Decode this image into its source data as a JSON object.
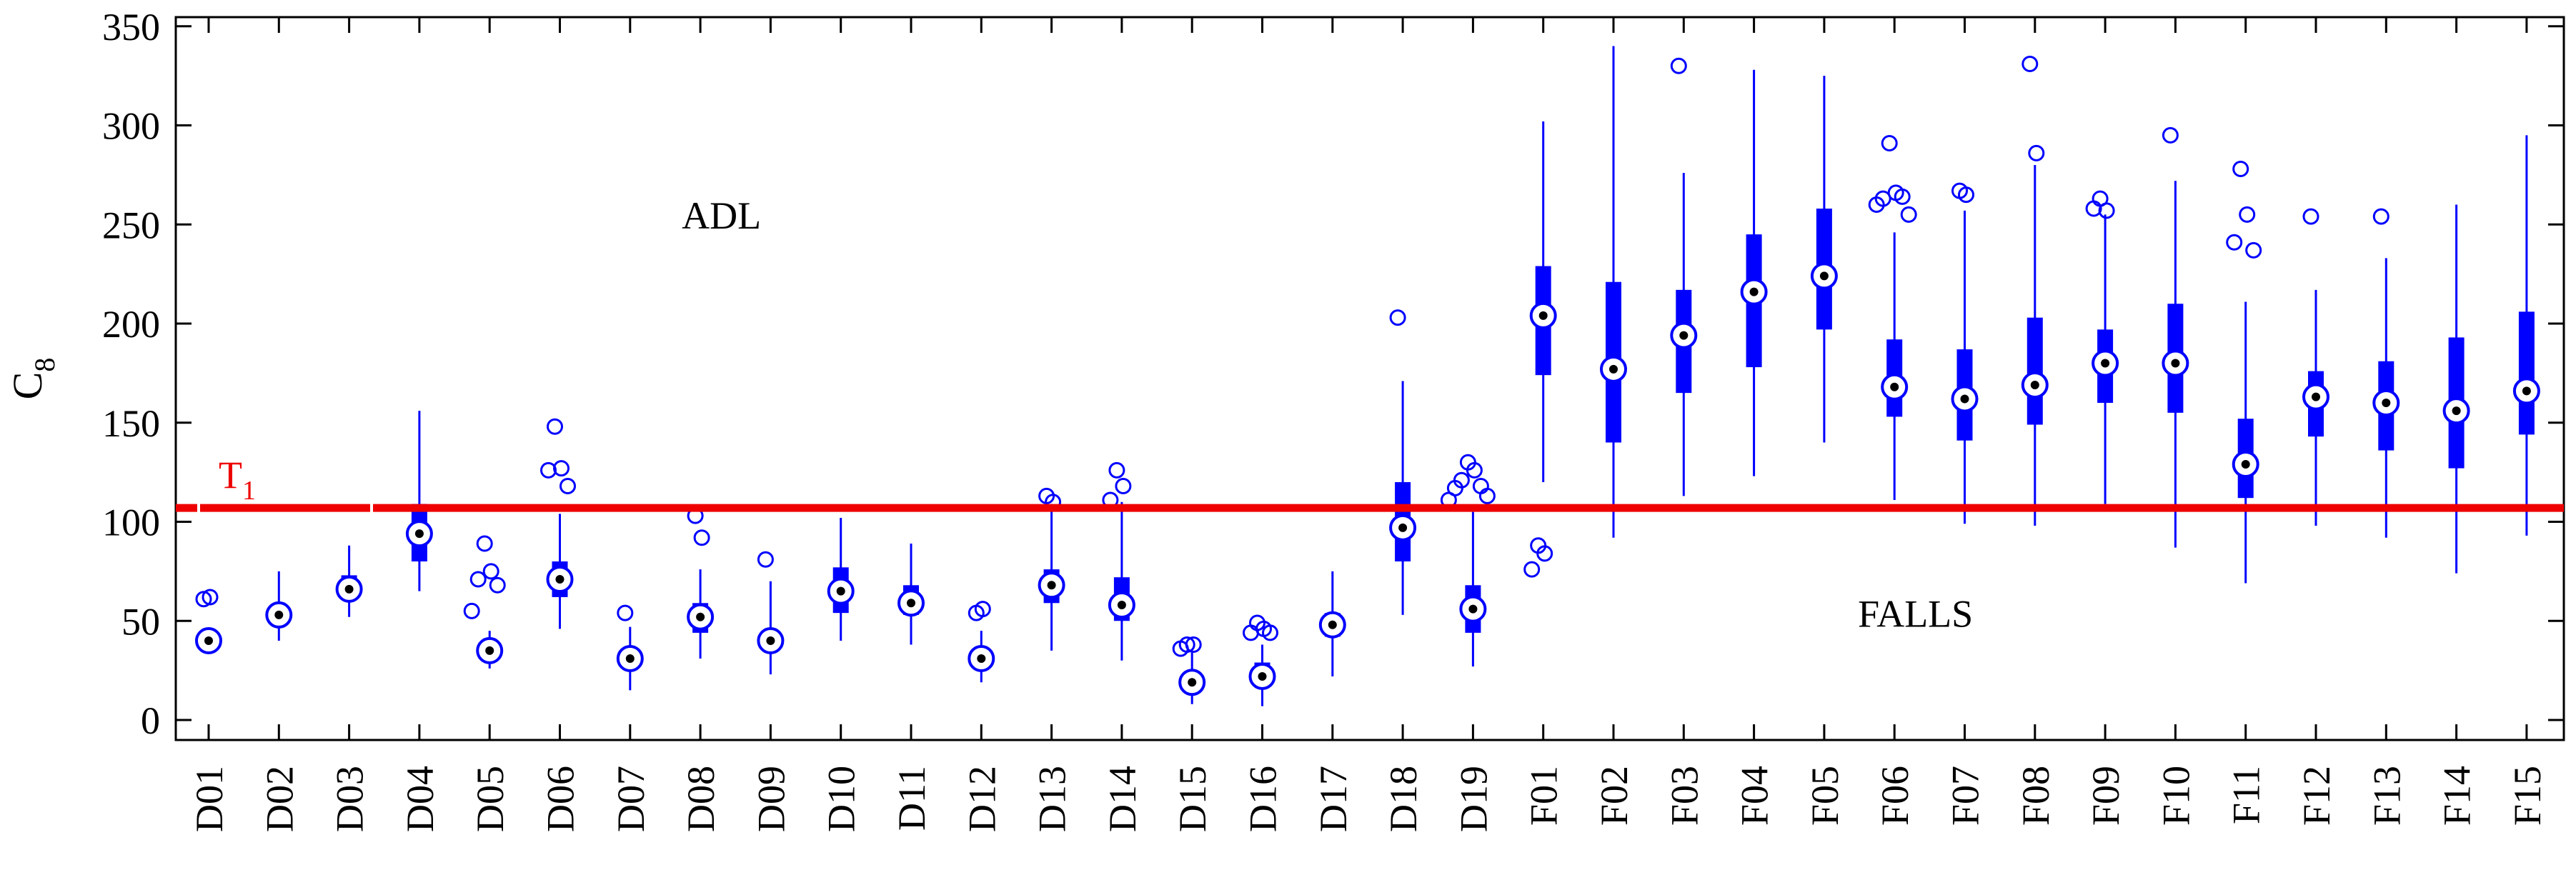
{
  "chart_data": {
    "type": "boxplot",
    "ylabel": "C",
    "ylabel_sub": "8",
    "ylim": [
      -8,
      355
    ],
    "yticks": [
      0,
      50,
      100,
      150,
      200,
      250,
      300,
      350
    ],
    "grid": false,
    "categories": [
      "D01",
      "D02",
      "D03",
      "D04",
      "D05",
      "D06",
      "D07",
      "D08",
      "D09",
      "D10",
      "D11",
      "D12",
      "D13",
      "D14",
      "D15",
      "D16",
      "D17",
      "D18",
      "D19",
      "F01",
      "F02",
      "F03",
      "F04",
      "F05",
      "F06",
      "F07",
      "F08",
      "F09",
      "F10",
      "F11",
      "F12",
      "F13",
      "F14",
      "F15"
    ],
    "boxes": [
      {
        "whislo": 35,
        "q1": 37,
        "med": 40,
        "q3": 43,
        "whishi": 46,
        "fliers": [
          61,
          62
        ]
      },
      {
        "whislo": 40,
        "q1": 49,
        "med": 53,
        "q3": 58,
        "whishi": 75,
        "fliers": []
      },
      {
        "whislo": 52,
        "q1": 61,
        "med": 66,
        "q3": 73,
        "whishi": 88,
        "fliers": []
      },
      {
        "whislo": 65,
        "q1": 80,
        "med": 94,
        "q3": 109,
        "whishi": 156,
        "fliers": []
      },
      {
        "whislo": 26,
        "q1": 31,
        "med": 35,
        "q3": 39,
        "whishi": 45,
        "fliers": [
          89,
          75,
          71,
          68,
          55
        ]
      },
      {
        "whislo": 46,
        "q1": 62,
        "med": 71,
        "q3": 80,
        "whishi": 104,
        "fliers": [
          148,
          127,
          126,
          118
        ]
      },
      {
        "whislo": 15,
        "q1": 27,
        "med": 31,
        "q3": 35,
        "whishi": 47,
        "fliers": [
          54
        ]
      },
      {
        "whislo": 31,
        "q1": 44,
        "med": 52,
        "q3": 59,
        "whishi": 76,
        "fliers": [
          103,
          92
        ]
      },
      {
        "whislo": 23,
        "q1": 35,
        "med": 40,
        "q3": 45,
        "whishi": 70,
        "fliers": [
          81
        ]
      },
      {
        "whislo": 40,
        "q1": 54,
        "med": 65,
        "q3": 77,
        "whishi": 102,
        "fliers": []
      },
      {
        "whislo": 38,
        "q1": 53,
        "med": 59,
        "q3": 68,
        "whishi": 89,
        "fliers": []
      },
      {
        "whislo": 19,
        "q1": 27,
        "med": 31,
        "q3": 36,
        "whishi": 45,
        "fliers": [
          54,
          56
        ]
      },
      {
        "whislo": 35,
        "q1": 59,
        "med": 68,
        "q3": 76,
        "whishi": 109,
        "fliers": [
          113,
          110
        ]
      },
      {
        "whislo": 30,
        "q1": 50,
        "med": 58,
        "q3": 72,
        "whishi": 110,
        "fliers": [
          126,
          118,
          111
        ]
      },
      {
        "whislo": 8,
        "q1": 14,
        "med": 19,
        "q3": 24,
        "whishi": 34,
        "fliers": [
          38,
          38,
          36
        ]
      },
      {
        "whislo": 7,
        "q1": 17,
        "med": 22,
        "q3": 29,
        "whishi": 38,
        "fliers": [
          49,
          46,
          44,
          44
        ]
      },
      {
        "whislo": 22,
        "q1": 42,
        "med": 48,
        "q3": 54,
        "whishi": 75,
        "fliers": []
      },
      {
        "whislo": 53,
        "q1": 80,
        "med": 97,
        "q3": 120,
        "whishi": 171,
        "fliers": [
          203
        ]
      },
      {
        "whislo": 27,
        "q1": 44,
        "med": 56,
        "q3": 68,
        "whishi": 105,
        "fliers": [
          130,
          126,
          121,
          118,
          117,
          113,
          111
        ]
      },
      {
        "whislo": 120,
        "q1": 174,
        "med": 204,
        "q3": 229,
        "whishi": 302,
        "fliers": [
          88,
          84,
          76
        ]
      },
      {
        "whislo": 92,
        "q1": 140,
        "med": 177,
        "q3": 221,
        "whishi": 340,
        "fliers": []
      },
      {
        "whislo": 113,
        "q1": 165,
        "med": 194,
        "q3": 217,
        "whishi": 276,
        "fliers": [
          330
        ]
      },
      {
        "whislo": 123,
        "q1": 178,
        "med": 216,
        "q3": 245,
        "whishi": 328,
        "fliers": []
      },
      {
        "whislo": 140,
        "q1": 197,
        "med": 224,
        "q3": 258,
        "whishi": 325,
        "fliers": []
      },
      {
        "whislo": 111,
        "q1": 153,
        "med": 168,
        "q3": 192,
        "whishi": 246,
        "fliers": [
          291,
          266,
          263,
          264,
          260,
          255
        ]
      },
      {
        "whislo": 99,
        "q1": 141,
        "med": 162,
        "q3": 187,
        "whishi": 257,
        "fliers": [
          267,
          265
        ]
      },
      {
        "whislo": 98,
        "q1": 149,
        "med": 169,
        "q3": 203,
        "whishi": 280,
        "fliers": [
          331,
          286
        ]
      },
      {
        "whislo": 109,
        "q1": 160,
        "med": 180,
        "q3": 197,
        "whishi": 255,
        "fliers": [
          263,
          257,
          258
        ]
      },
      {
        "whislo": 87,
        "q1": 155,
        "med": 180,
        "q3": 210,
        "whishi": 272,
        "fliers": [
          295
        ]
      },
      {
        "whislo": 69,
        "q1": 112,
        "med": 129,
        "q3": 152,
        "whishi": 211,
        "fliers": [
          278,
          255,
          241,
          237
        ]
      },
      {
        "whislo": 98,
        "q1": 143,
        "med": 163,
        "q3": 176,
        "whishi": 217,
        "fliers": [
          254
        ]
      },
      {
        "whislo": 92,
        "q1": 136,
        "med": 160,
        "q3": 181,
        "whishi": 233,
        "fliers": [
          254
        ]
      },
      {
        "whislo": 74,
        "q1": 127,
        "med": 156,
        "q3": 193,
        "whishi": 260,
        "fliers": []
      },
      {
        "whislo": 93,
        "q1": 144,
        "med": 166,
        "q3": 206,
        "whishi": 295,
        "fliers": []
      }
    ],
    "threshold": {
      "label": "T",
      "label_sub": "1",
      "value": 107,
      "color": "#ee0000"
    },
    "annotations": [
      {
        "text": "ADL",
        "x": 7.3,
        "y": 248
      },
      {
        "text": "FALLS",
        "x": 24.3,
        "y": 47
      }
    ],
    "colors": {
      "box": "#0000ff",
      "threshold": "#ee0000",
      "median_dot": "#000000"
    }
  }
}
